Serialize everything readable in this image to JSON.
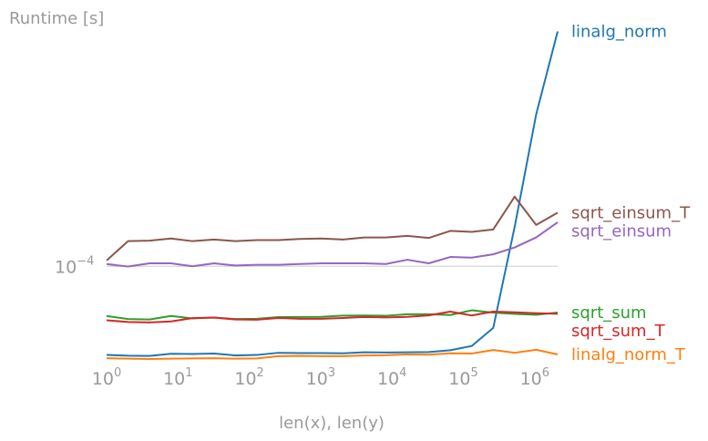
{
  "chart_data": {
    "type": "line",
    "title": "",
    "ylabel": "Runtime [s]",
    "xlabel": "len(x), len(y)",
    "x_scale": "log",
    "y_scale": "log",
    "xlim": [
      1,
      2097152
    ],
    "ylim": [
      2.83e-05,
      0.00229
    ],
    "grid": "horizontal at 1e-4 only",
    "legend": "inline labels at right end of each line",
    "x_ticks": [
      {
        "value": 1,
        "base": "10",
        "exp": "0"
      },
      {
        "value": 10,
        "base": "10",
        "exp": "1"
      },
      {
        "value": 100,
        "base": "10",
        "exp": "2"
      },
      {
        "value": 1000,
        "base": "10",
        "exp": "3"
      },
      {
        "value": 10000,
        "base": "10",
        "exp": "4"
      },
      {
        "value": 100000,
        "base": "10",
        "exp": "5"
      },
      {
        "value": 1000000,
        "base": "10",
        "exp": "6"
      }
    ],
    "y_ticks": [
      {
        "value": 0.0001,
        "base": "10",
        "exp": "−4"
      }
    ],
    "x": [
      1,
      2,
      4,
      8,
      16,
      32,
      64,
      128,
      256,
      512,
      1024,
      2048,
      4096,
      8192,
      16384,
      32768,
      65536,
      131072,
      262144,
      524288,
      1048576,
      2097152
    ],
    "series": [
      {
        "name": "linalg_norm",
        "color": "#1f77b4",
        "values": [
          3.13e-05,
          3.1e-05,
          3.09e-05,
          3.18e-05,
          3.17e-05,
          3.19e-05,
          3.11e-05,
          3.13e-05,
          3.22e-05,
          3.21e-05,
          3.21e-05,
          3.2e-05,
          3.24e-05,
          3.23e-05,
          3.24e-05,
          3.25e-05,
          3.33e-05,
          3.52e-05,
          4.46e-05,
          0.000168,
          0.000732,
          0.00217
        ]
      },
      {
        "name": "linalg_norm_T",
        "color": "#ff7f0e",
        "values": [
          3e-05,
          2.98e-05,
          2.97e-05,
          2.98e-05,
          2.99e-05,
          3e-05,
          2.98e-05,
          2.99e-05,
          3.08e-05,
          3.09e-05,
          3.08e-05,
          3.08e-05,
          3.11e-05,
          3.12e-05,
          3.15e-05,
          3.14e-05,
          3.2e-05,
          3.19e-05,
          3.34e-05,
          3.22e-05,
          3.35e-05,
          3.15e-05
        ]
      },
      {
        "name": "sqrt_sum",
        "color": "#2ca02c",
        "values": [
          5.21e-05,
          5.01e-05,
          4.98e-05,
          5.22e-05,
          5.05e-05,
          5.11e-05,
          5.01e-05,
          5.03e-05,
          5.14e-05,
          5.15e-05,
          5.16e-05,
          5.24e-05,
          5.25e-05,
          5.23e-05,
          5.34e-05,
          5.34e-05,
          5.28e-05,
          5.62e-05,
          5.45e-05,
          5.36e-05,
          5.3e-05,
          5.46e-05
        ]
      },
      {
        "name": "sqrt_sum_T",
        "color": "#d62728",
        "values": [
          4.93e-05,
          4.82e-05,
          4.79e-05,
          4.86e-05,
          5.07e-05,
          5.11e-05,
          4.98e-05,
          4.97e-05,
          5.08e-05,
          5.03e-05,
          5.03e-05,
          5.08e-05,
          5.15e-05,
          5.12e-05,
          5.16e-05,
          5.26e-05,
          5.52e-05,
          5.25e-05,
          5.52e-05,
          5.47e-05,
          5.41e-05,
          5.37e-05
        ]
      },
      {
        "name": "sqrt_einsum",
        "color": "#9467bd",
        "values": [
          0.000103,
          9.97e-05,
          0.000104,
          0.000104,
          0.0001,
          0.000104,
          0.000101,
          0.000102,
          0.000102,
          0.000103,
          0.000104,
          0.000104,
          0.000104,
          0.000103,
          0.000109,
          0.000104,
          0.000113,
          0.000112,
          0.000117,
          0.000128,
          0.000146,
          0.000178
        ]
      },
      {
        "name": "sqrt_einsum_T",
        "color": "#8c564b",
        "values": [
          0.000108,
          0.000139,
          0.00014,
          0.000144,
          0.000139,
          0.000142,
          0.000139,
          0.000141,
          0.000141,
          0.000143,
          0.000144,
          0.000142,
          0.000146,
          0.000146,
          0.000149,
          0.000145,
          0.000159,
          0.000157,
          0.000162,
          0.000249,
          0.000172,
          0.000202
        ]
      }
    ]
  }
}
